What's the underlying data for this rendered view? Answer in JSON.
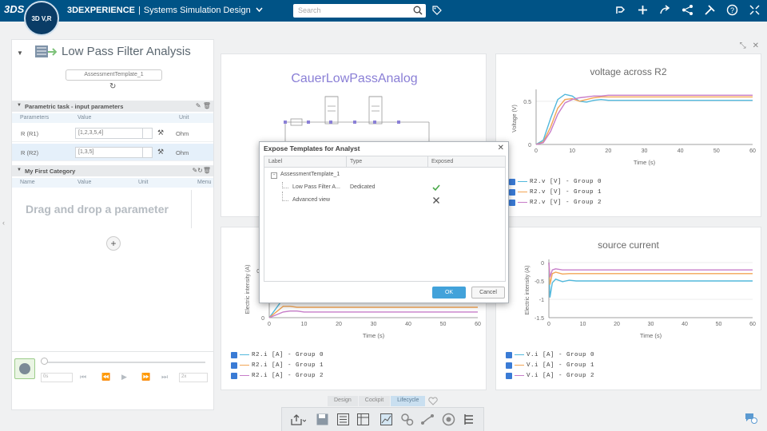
{
  "topbar": {
    "logo": "3DS",
    "compass_label": "3D V,R",
    "brand_bold": "3DEXPERIENCE",
    "separator": "|",
    "app_name": "Systems Simulation Design",
    "search_placeholder": "Search",
    "icons": [
      "tag-icon",
      "share-icon",
      "add-icon",
      "forward-icon",
      "network-icon",
      "tools-icon",
      "help-icon",
      "maximize-icon"
    ]
  },
  "left_panel": {
    "title": "Low Pass Filter Analysis",
    "template_name": "AssessmentTemplate_1",
    "section1": {
      "title": "Parametric task - input parameters",
      "columns": [
        "Parameters",
        "Value",
        "Unit"
      ],
      "rows": [
        {
          "name": "R (R1)",
          "value": "[1,2,3,5,4]",
          "unit": "Ohm"
        },
        {
          "name": "R (R2)",
          "value": "[1,3,5]",
          "unit": "Ohm"
        }
      ]
    },
    "section2": {
      "title": "My First Category",
      "columns": [
        "Name",
        "Value",
        "Unit",
        "Menu"
      ],
      "drop_hint": "Drag and drop a parameter"
    },
    "add_label": "+",
    "player": {
      "time": "0s",
      "speed": "2x"
    }
  },
  "cards": {
    "diagram": {
      "title": "CauerLowPassAnalog"
    },
    "voltage": {
      "title": "voltage across R2",
      "ylabel": "Voltage (V)",
      "xlabel": "Time (s)",
      "legend": [
        "R2.v [V] - Group 0",
        "R2.v [V] - Group 1",
        "R2.v [V] - Group 2"
      ]
    },
    "current_r2": {
      "ylabel": "Electric intensity (A)",
      "xlabel": "Time (s)",
      "legend": [
        "R2.i [A] - Group 0",
        "R2.i [A] - Group 1",
        "R2.i [A] - Group 2"
      ]
    },
    "source": {
      "title": "source current",
      "ylabel": "Electric intensity (A)",
      "xlabel": "Time (s)",
      "legend": [
        "V.i [A] - Group 0",
        "V.i [A] - Group 1",
        "V.i [A] - Group 2"
      ]
    }
  },
  "series_colors": [
    "#52b8dc",
    "#f2a555",
    "#c77dc9"
  ],
  "chart_data": [
    {
      "type": "line",
      "title": "voltage across R2",
      "xlabel": "Time (s)",
      "ylabel": "Voltage (V)",
      "xlim": [
        0,
        60
      ],
      "ylim": [
        0,
        0.6
      ],
      "x_ticks": [
        0,
        10,
        20,
        30,
        40,
        50,
        60
      ],
      "y_ticks": [
        0,
        0.5
      ],
      "x": [
        0,
        2,
        4,
        6,
        8,
        10,
        12,
        14,
        16,
        18,
        20,
        25,
        30,
        35,
        40,
        45,
        50,
        55,
        60
      ],
      "series": [
        {
          "name": "R2.v [V] - Group 0",
          "values": [
            0,
            0.05,
            0.3,
            0.52,
            0.58,
            0.56,
            0.5,
            0.49,
            0.51,
            0.52,
            0.51,
            0.51,
            0.51,
            0.51,
            0.51,
            0.51,
            0.51,
            0.51,
            0.51
          ]
        },
        {
          "name": "R2.v [V] - Group 1",
          "values": [
            0,
            0.03,
            0.2,
            0.42,
            0.52,
            0.53,
            0.5,
            0.52,
            0.54,
            0.55,
            0.55,
            0.55,
            0.55,
            0.55,
            0.55,
            0.55,
            0.55,
            0.55,
            0.55
          ]
        },
        {
          "name": "R2.v [V] - Group 2",
          "values": [
            0,
            0.02,
            0.15,
            0.35,
            0.48,
            0.52,
            0.54,
            0.55,
            0.56,
            0.56,
            0.57,
            0.57,
            0.57,
            0.57,
            0.57,
            0.57,
            0.57,
            0.57,
            0.57
          ]
        }
      ]
    },
    {
      "type": "line",
      "title": "",
      "xlabel": "Time (s)",
      "ylabel": "Electric intensity (A)",
      "xlim": [
        0,
        60
      ],
      "ylim": [
        0,
        0.6
      ],
      "x_ticks": [
        0,
        10,
        20,
        30,
        40,
        50,
        60
      ],
      "y_ticks": [
        0,
        0.5
      ],
      "x": [
        0,
        2,
        4,
        6,
        8,
        10,
        15,
        20,
        30,
        40,
        50,
        60
      ],
      "series": [
        {
          "name": "R2.i [A] - Group 0",
          "values": [
            0,
            0.1,
            0.2,
            0.18,
            0.16,
            0.17,
            0.17,
            0.17,
            0.17,
            0.17,
            0.17,
            0.17
          ]
        },
        {
          "name": "R2.i [A] - Group 1",
          "values": [
            0,
            0.06,
            0.12,
            0.12,
            0.11,
            0.11,
            0.11,
            0.11,
            0.11,
            0.11,
            0.11,
            0.11
          ]
        },
        {
          "name": "R2.i [A] - Group 2",
          "values": [
            0,
            0.03,
            0.06,
            0.07,
            0.07,
            0.06,
            0.06,
            0.06,
            0.06,
            0.06,
            0.06,
            0.06
          ]
        }
      ]
    },
    {
      "type": "line",
      "title": "source current",
      "xlabel": "Time (s)",
      "ylabel": "Electric intensity (A)",
      "xlim": [
        0,
        60
      ],
      "ylim": [
        -1.5,
        0
      ],
      "x_ticks": [
        0,
        10,
        20,
        30,
        40,
        50,
        60
      ],
      "y_ticks": [
        0,
        -0.5,
        -1,
        -1.5
      ],
      "x": [
        0,
        0.3,
        1,
        2,
        4,
        6,
        8,
        10,
        15,
        20,
        30,
        40,
        50,
        60
      ],
      "series": [
        {
          "name": "V.i [A] - Group 0",
          "values": [
            0,
            -0.95,
            -0.55,
            -0.45,
            -0.52,
            -0.48,
            -0.5,
            -0.5,
            -0.5,
            -0.5,
            -0.5,
            -0.5,
            -0.5,
            -0.5
          ]
        },
        {
          "name": "V.i [A] - Group 1",
          "values": [
            0,
            -0.6,
            -0.3,
            -0.26,
            -0.31,
            -0.3,
            -0.3,
            -0.3,
            -0.3,
            -0.3,
            -0.3,
            -0.3,
            -0.3,
            -0.3
          ]
        },
        {
          "name": "V.i [A] - Group 2",
          "values": [
            0,
            -0.4,
            -0.2,
            -0.17,
            -0.2,
            -0.2,
            -0.2,
            -0.2,
            -0.2,
            -0.2,
            -0.2,
            -0.2,
            -0.2,
            -0.2
          ]
        }
      ]
    }
  ],
  "dialog": {
    "title": "Expose Templates for Analyst",
    "columns": [
      "Label",
      "Type",
      "Exposed"
    ],
    "root": "AssessmentTemplate_1",
    "rows": [
      {
        "label": "Low Pass Filter A...",
        "type": "Dedicated",
        "exposed": "check"
      },
      {
        "label": "Advanced view",
        "type": "",
        "exposed": "cross"
      }
    ],
    "ok": "OK",
    "cancel": "Cancel"
  },
  "bottom_tabs": [
    "Design",
    "Cockpit",
    "Lifecycle"
  ],
  "active_tab": "Lifecycle"
}
